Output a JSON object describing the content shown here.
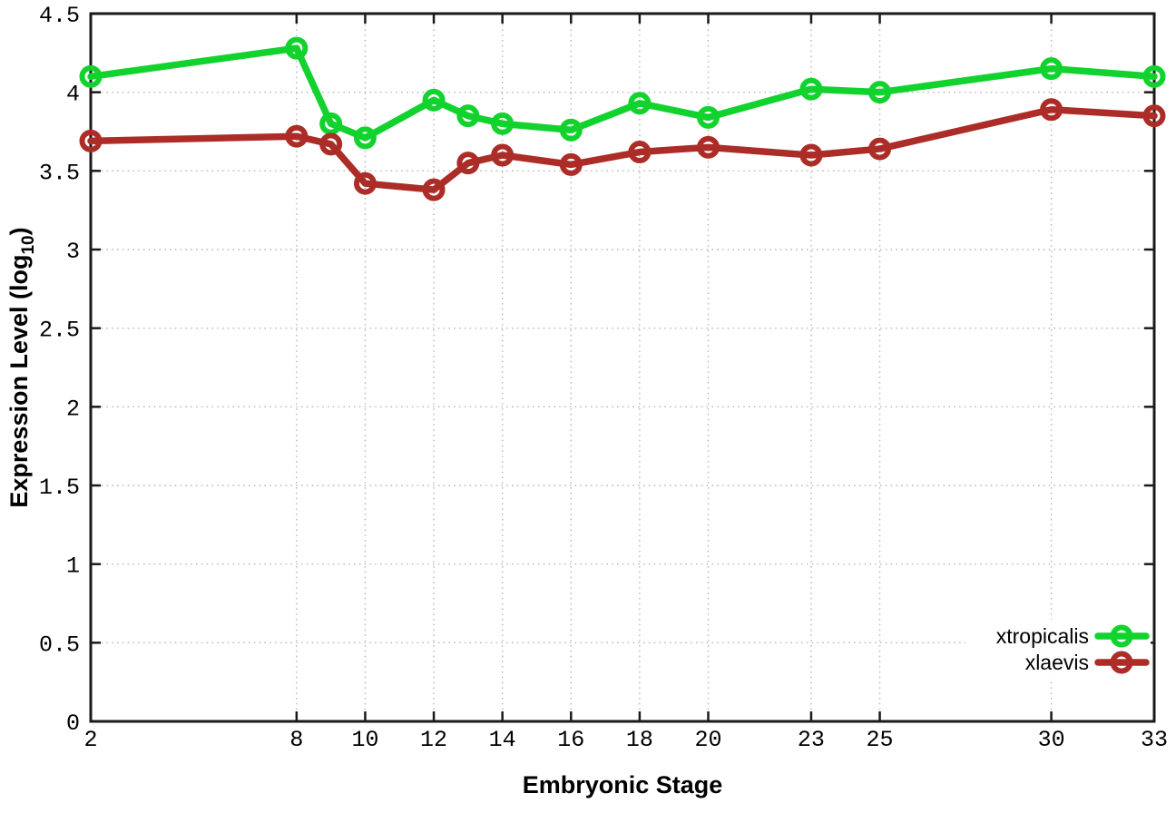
{
  "figure": {
    "background": "#ffffff",
    "plot_border_color": "#1a1a1a",
    "grid_color": "#b8b8b8",
    "text_color": "#000000"
  },
  "chart_data": {
    "type": "line",
    "title": "",
    "xlabel": "Embryonic Stage",
    "ylabel": "Expression Level (log10)",
    "ylabel_parts": {
      "main": "Expression Level (log",
      "sub": "10",
      "close": ")"
    },
    "xlim": [
      2,
      33
    ],
    "ylim": [
      0,
      4.5
    ],
    "x_ticks": [
      2,
      8,
      10,
      12,
      14,
      16,
      18,
      20,
      23,
      25,
      30,
      33
    ],
    "y_ticks": [
      0,
      0.5,
      1,
      1.5,
      2,
      2.5,
      3,
      3.5,
      4,
      4.5
    ],
    "grid": true,
    "legend_position": "bottom-right",
    "x": [
      2,
      8,
      9,
      10,
      12,
      13,
      14,
      16,
      18,
      20,
      23,
      25,
      30,
      33
    ],
    "series": [
      {
        "name": "xtropicalis",
        "color": "#12d22e",
        "marker": "open-circle",
        "values": [
          4.1,
          4.28,
          3.8,
          3.71,
          3.95,
          3.85,
          3.8,
          3.76,
          3.93,
          3.84,
          4.02,
          4.0,
          4.15,
          4.1
        ]
      },
      {
        "name": "xlaevis",
        "color": "#ac2c27",
        "marker": "open-circle",
        "values": [
          3.69,
          3.72,
          3.67,
          3.42,
          3.38,
          3.55,
          3.6,
          3.54,
          3.62,
          3.65,
          3.6,
          3.64,
          3.89,
          3.85
        ]
      }
    ]
  }
}
